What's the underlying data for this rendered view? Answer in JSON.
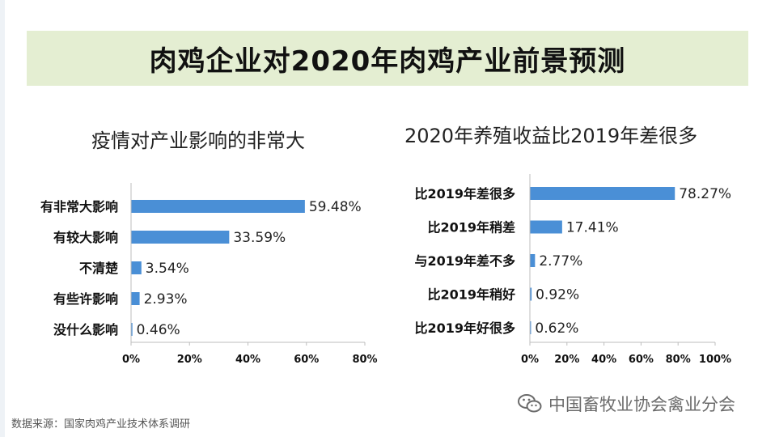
{
  "title": "肉鸡企业对2020年肉鸡产业前景预测",
  "source": "数据来源：国家肉鸡产业技术体系调研",
  "watermark": "中国畜牧业协会禽业分会",
  "colors": {
    "bar": "#4a8fd6",
    "banner": "#e4eed2"
  },
  "chart_data": [
    {
      "type": "bar",
      "orientation": "horizontal",
      "title": "疫情对产业影响的非常大",
      "categories": [
        "有非常大影响",
        "有较大影响",
        "不清楚",
        "有些许影响",
        "没什么影响"
      ],
      "values": [
        59.48,
        33.59,
        3.54,
        2.93,
        0.46
      ],
      "value_labels": [
        "59.48%",
        "33.59%",
        "3.54%",
        "2.93%",
        "0.46%"
      ],
      "xlim": [
        0,
        80
      ],
      "xticks": [
        "0%",
        "20%",
        "40%",
        "60%",
        "80%"
      ],
      "grid": false
    },
    {
      "type": "bar",
      "orientation": "horizontal",
      "title": "2020年养殖收益比2019年差很多",
      "categories": [
        "比2019年差很多",
        "比2019年稍差",
        "与2019年差不多",
        "比2019年稍好",
        "比2019年好很多"
      ],
      "values": [
        78.27,
        17.41,
        2.77,
        0.92,
        0.62
      ],
      "value_labels": [
        "78.27%",
        "17.41%",
        "2.77%",
        "0.92%",
        "0.62%"
      ],
      "xlim": [
        0,
        100
      ],
      "xticks": [
        "0%",
        "20%",
        "40%",
        "60%",
        "80%",
        "100%"
      ],
      "grid": false
    }
  ]
}
